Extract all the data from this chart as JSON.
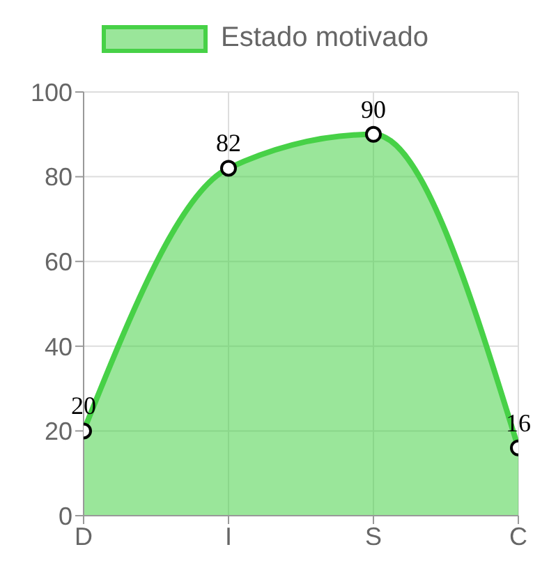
{
  "chart_data": {
    "type": "area",
    "categories": [
      "D",
      "I",
      "S",
      "C"
    ],
    "series": [
      {
        "name": "Estado motivado",
        "color": "#47d147",
        "values": [
          20,
          82,
          90,
          16
        ]
      }
    ],
    "ylim": [
      0,
      100
    ],
    "yticks": [
      0,
      20,
      40,
      60,
      80,
      100
    ],
    "grid": true,
    "legend": "top",
    "marker": "circle",
    "data_labels": true
  }
}
